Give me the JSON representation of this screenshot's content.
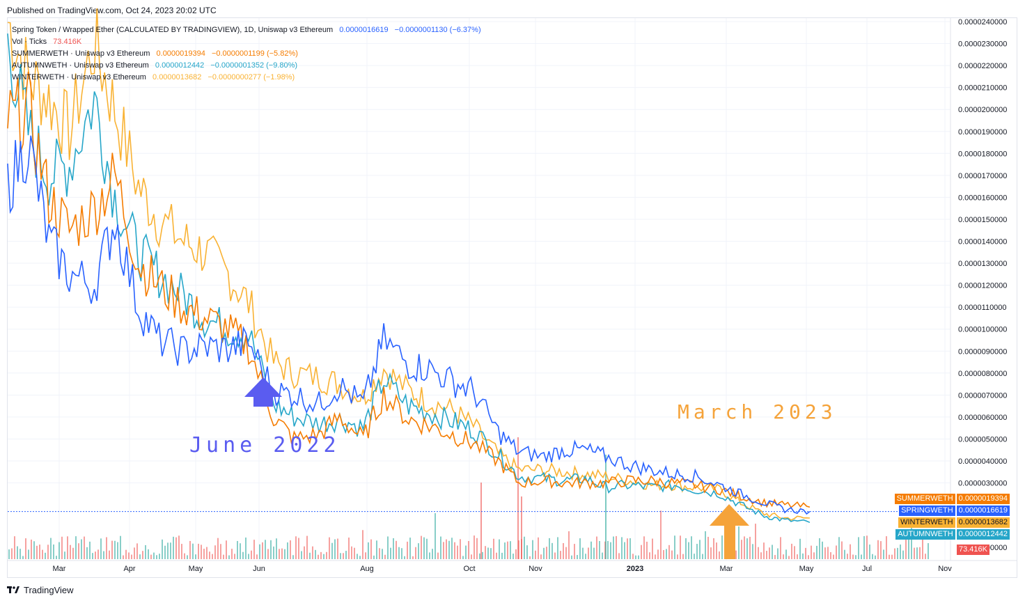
{
  "header": {
    "published": "Published on TradingView.com, Oct 24, 2023 20:02 UTC"
  },
  "legend": {
    "main": {
      "label": "Spring Token / Wrapped Ether (CALCULATED BY TRADINGVIEW), 1D, Uniswap v3 Ethereum",
      "value": "0.0000016619",
      "change": "−0.0000001130 (−6.37%)"
    },
    "vol": {
      "label": "Vol · Ticks",
      "value": "73.416K"
    },
    "summer": {
      "label": "SUMMERWETH · Uniswap v3 Ethereum",
      "value": "0.0000019394",
      "change": "−0.0000001199 (−5.82%)"
    },
    "autumn": {
      "label": "AUTUMNWETH · Uniswap v3 Ethereum",
      "value": "0.0000012442",
      "change": "−0.0000001352 (−9.80%)"
    },
    "winter": {
      "label": "WINTERWETH · Uniswap v3 Ethereum",
      "value": "0.0000013682",
      "change": "−0.0000000277 (−1.98%)"
    }
  },
  "annotations": {
    "june": "June 2022",
    "march": "March 2023"
  },
  "price_tags": [
    {
      "name": "SUMMERWETH",
      "value": "0.0000019394",
      "color": "#f57c00"
    },
    {
      "name": "SPRINGWETH",
      "value": "0.0000016619",
      "color": "#2962ff"
    },
    {
      "name": "WINTERWETH",
      "value": "0.0000013682",
      "color": "#f9b233"
    },
    {
      "name": "AUTUMNWETH",
      "value": "0.0000012442",
      "color": "#26a6c9"
    }
  ],
  "volume_tag": "73.416K",
  "footer": {
    "brand": "TradingView"
  },
  "colors": {
    "spring": "#2962ff",
    "summer": "#f57c00",
    "autumn": "#26a6c9",
    "winter": "#f9b233",
    "vol_up": "#26a69a",
    "vol_down": "#ef5350",
    "grid": "#f0f3fa"
  },
  "chart_data": {
    "type": "line",
    "x_ticks": [
      "Mar",
      "Apr",
      "May",
      "Jun",
      "Aug",
      "Oct",
      "Nov",
      "2023",
      "Mar",
      "May",
      "Jul",
      "Nov"
    ],
    "y_ticks": [
      "0.0000240000",
      "0.0000230000",
      "0.0000220000",
      "0.0000210000",
      "0.0000200000",
      "0.0000190000",
      "0.0000180000",
      "0.0000170000",
      "0.0000160000",
      "0.0000150000",
      "0.0000140000",
      "0.0000130000",
      "0.0000120000",
      "0.0000110000",
      "0.0000100000",
      "0.0000090000",
      "0.0000080000",
      "0.0000070000",
      "0.0000060000",
      "0.0000050000",
      "0.0000040000",
      "0.0000030000",
      "0.0000000000"
    ],
    "ylim": [
      1e-07,
      2.4e-05
    ],
    "x": [
      "2022-02-01",
      "2022-02-15",
      "2022-03-01",
      "2022-03-15",
      "2022-04-01",
      "2022-04-15",
      "2022-05-01",
      "2022-05-15",
      "2022-06-01",
      "2022-06-15",
      "2022-07-01",
      "2022-07-15",
      "2022-08-01",
      "2022-08-15",
      "2022-09-01",
      "2022-09-15",
      "2022-10-01",
      "2022-10-15",
      "2022-11-01",
      "2022-11-15",
      "2022-12-01",
      "2022-12-15",
      "2023-01-01",
      "2023-01-15",
      "2023-02-01",
      "2023-02-15",
      "2023-03-01",
      "2023-03-15",
      "2023-04-01",
      "2023-04-15",
      "2023-05-01",
      "2023-05-15",
      "2023-06-01",
      "2023-06-15",
      "2023-07-01",
      "2023-07-15",
      "2023-08-01"
    ],
    "series": [
      {
        "name": "SPRINGWETH",
        "color": "#2962ff",
        "values": [
          1.65e-05,
          1.85e-05,
          1.4e-05,
          1.25e-05,
          1.2e-05,
          1.5e-05,
          1.1e-05,
          9.5e-06,
          9e-06,
          9.2e-06,
          9.1e-06,
          9.4e-06,
          7.2e-06,
          7e-06,
          6.6e-06,
          7.4e-06,
          6.6e-06,
          9.5e-06,
          8.4e-06,
          8.2e-06,
          7.6e-06,
          7.2e-06,
          5.3e-06,
          4.4e-06,
          4.2e-06,
          4.5e-06,
          4.5e-06,
          4.2e-06,
          3.8e-06,
          3.6e-06,
          3.4e-06,
          3.3e-06,
          2.9e-06,
          2.5e-06,
          2.1e-06,
          1.8e-06,
          1.7e-06
        ]
      },
      {
        "name": "SUMMERWETH",
        "color": "#f57c00",
        "values": [
          1.95e-05,
          2e-05,
          1.6e-05,
          1.45e-05,
          1.55e-05,
          1.7e-05,
          1.3e-05,
          1.2e-05,
          1.1e-05,
          1.05e-05,
          1e-05,
          9.2e-06,
          6e-06,
          5e-06,
          5.2e-06,
          6e-06,
          5e-06,
          7e-06,
          5.9e-06,
          5.6e-06,
          5.2e-06,
          4.8e-06,
          4e-06,
          3e-06,
          3.1e-06,
          3e-06,
          3e-06,
          3e-06,
          3.1e-06,
          3.1e-06,
          3e-06,
          2.9e-06,
          2.7e-06,
          2.4e-06,
          2.1e-06,
          2e-06,
          1.9e-06
        ]
      },
      {
        "name": "AUTUMNWETH",
        "color": "#26a6c9",
        "values": [
          2.3e-05,
          1.9e-05,
          1.7e-05,
          1.75e-05,
          2.05e-05,
          1.6e-05,
          1.35e-05,
          1.25e-05,
          1.15e-05,
          1.05e-05,
          1e-05,
          9.8e-06,
          6.6e-06,
          6e-06,
          5.7e-06,
          5.9e-06,
          5.5e-06,
          7.7e-06,
          6.5e-06,
          6.2e-06,
          5.8e-06,
          5.4e-06,
          4.3e-06,
          3.3e-06,
          3.2e-06,
          3.1e-06,
          3.2e-06,
          2.8e-06,
          2.9e-06,
          2.8e-06,
          2.9e-06,
          2.7e-06,
          2.5e-06,
          2e-06,
          1.5e-06,
          1.3e-06,
          1.2e-06
        ]
      },
      {
        "name": "WINTERWETH",
        "color": "#f9b233",
        "values": [
          2.4e-05,
          2.15e-05,
          2.05e-05,
          1.9e-05,
          2.3e-05,
          2e-05,
          1.65e-05,
          1.5e-05,
          1.4e-05,
          1.35e-05,
          1.25e-05,
          1.12e-05,
          8.5e-06,
          8e-06,
          7.8e-06,
          7.5e-06,
          6.9e-06,
          8.2e-06,
          7.2e-06,
          6.7e-06,
          6.3e-06,
          5.6e-06,
          4.3e-06,
          3.6e-06,
          3.6e-06,
          3.5e-06,
          3.4e-06,
          3.3e-06,
          3.1e-06,
          2.9e-06,
          2.9e-06,
          2.8e-06,
          2.7e-06,
          2.1e-06,
          1.6e-06,
          1.4e-06,
          1.4e-06
        ]
      }
    ],
    "grid": true,
    "legend_position": "top-left"
  }
}
